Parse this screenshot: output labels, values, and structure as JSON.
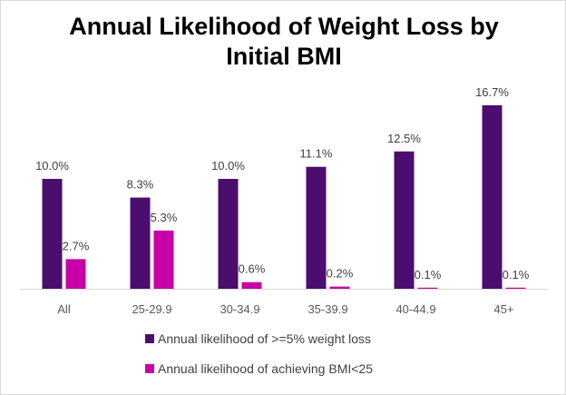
{
  "chart_data": {
    "type": "bar",
    "title_line1": "Annual Likelihood of Weight Loss by",
    "title_line2": "Initial BMI",
    "categories": [
      "All",
      "25-29.9",
      "30-34.9",
      "35-39.9",
      "40-44.9",
      "45+"
    ],
    "series": [
      {
        "name": "Annual likelihood of >=5% weight loss",
        "values": [
          10.0,
          8.3,
          10.0,
          11.1,
          12.5,
          16.7
        ],
        "labels": [
          "10.0%",
          "8.3%",
          "10.0%",
          "11.1%",
          "12.5%",
          "16.7%"
        ],
        "color": "#4b0d6e"
      },
      {
        "name": "Annual likelihood of achieving BMI<25",
        "values": [
          2.7,
          5.3,
          0.6,
          0.2,
          0.1,
          0.1
        ],
        "labels": [
          "2.7%",
          "5.3%",
          "0.6%",
          "0.2%",
          "0.1%",
          "0.1%"
        ],
        "color": "#c800a8"
      }
    ],
    "ylim": [
      0,
      18
    ],
    "axis_color": "#d9d9d9",
    "grid": false,
    "legend_position": "bottom"
  }
}
